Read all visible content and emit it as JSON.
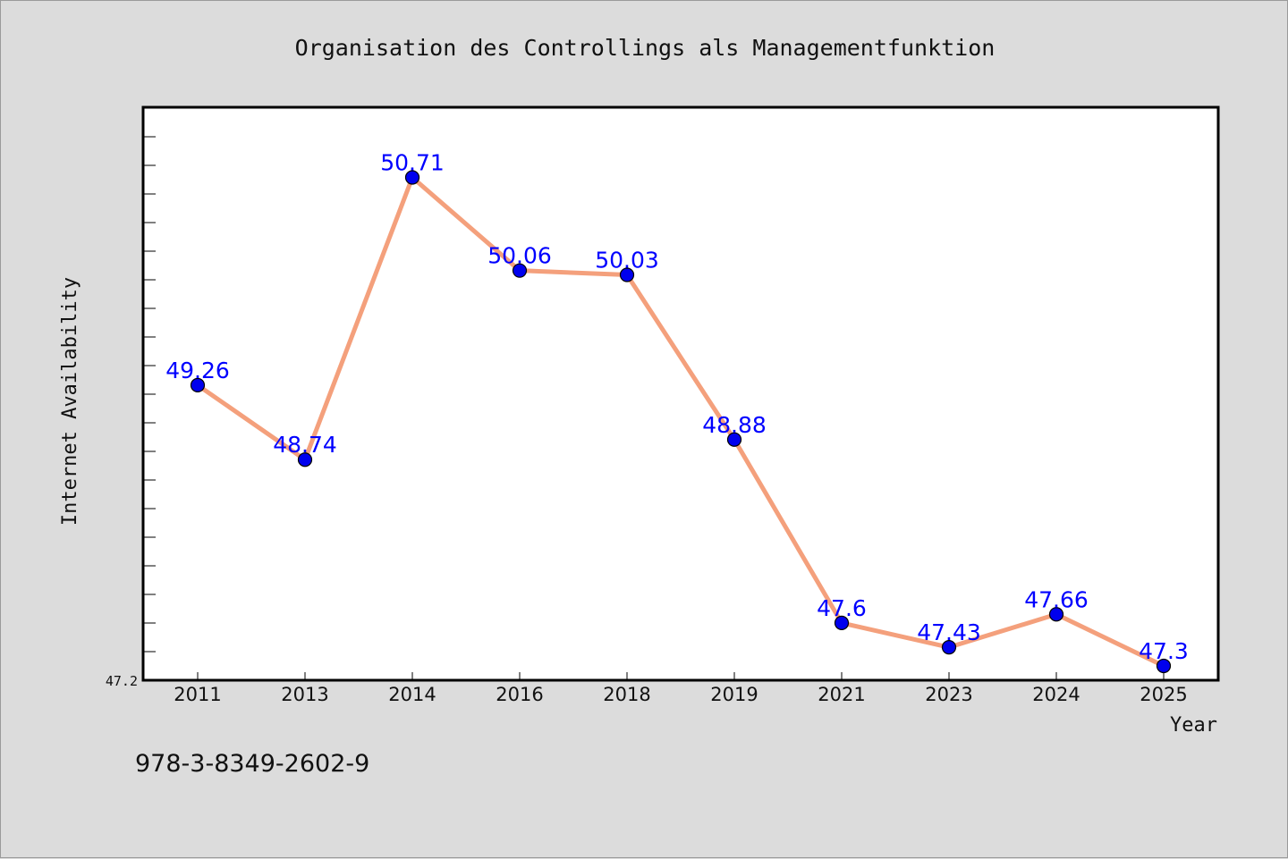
{
  "chart_data": {
    "type": "line",
    "title": "Organisation des Controllings als Managementfunktion",
    "xlabel": "Year",
    "ylabel": "Internet Availability",
    "categories": [
      "2011",
      "2013",
      "2014",
      "2016",
      "2018",
      "2019",
      "2021",
      "2023",
      "2024",
      "2025"
    ],
    "series": [
      {
        "values": [
          49.26,
          48.74,
          50.71,
          50.06,
          50.03,
          48.88,
          47.6,
          47.43,
          47.66,
          47.3
        ],
        "labels": [
          "49.26",
          "48.74",
          "50.71",
          "50.06",
          "50.03",
          "48.88",
          "47.6",
          "47.43",
          "47.66",
          "47.3"
        ],
        "line_color": "#f4a07c",
        "marker_color": "#0000ee"
      }
    ],
    "ylim": [
      47.2,
      51.2
    ],
    "y_tick_labels": [
      "47.2"
    ],
    "grid": false,
    "legend": "none"
  },
  "footer": {
    "isbn": "978-3-8349-2602-9"
  },
  "colors": {
    "background": "#dcdcdc",
    "plot_background": "#ffffff",
    "label_color": "#0000ff"
  }
}
